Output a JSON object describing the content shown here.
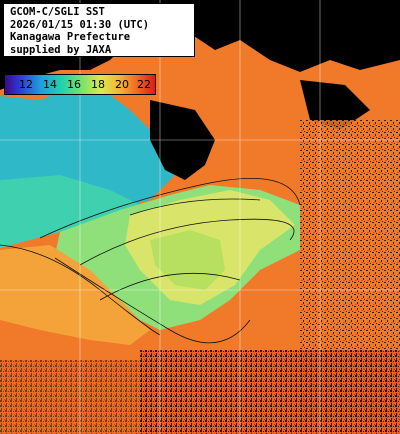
{
  "caption": {
    "lines": [
      "GCOM-C/SGLI SST",
      "2026/01/15 01:30 (UTC)",
      "Kanagawa Prefecture",
      "supplied by JAXA"
    ]
  },
  "colorbar": {
    "labels": [
      "12",
      "14",
      "16",
      "18",
      "20",
      "22"
    ],
    "colors": [
      "#3a0a8a",
      "#2c3cd6",
      "#1f9fdb",
      "#27d1a8",
      "#7fe36a",
      "#dfe84a",
      "#f4b43a",
      "#f06a22",
      "#e01b12"
    ]
  },
  "colors": {
    "land": "#000000",
    "cloud_noise": "#1a1a1a",
    "warm_sea": "#f07a2a",
    "bay_cool": "#8fe07a",
    "bay_mid": "#d8e46a",
    "coastal_cold": "#2fb8c8",
    "grid": "#ffffff"
  }
}
